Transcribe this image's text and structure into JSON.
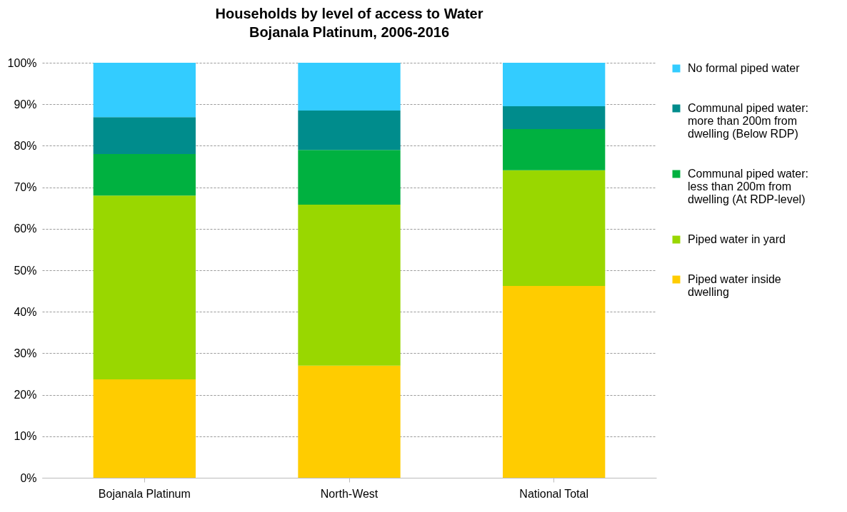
{
  "chart_data": {
    "type": "bar",
    "stacked": true,
    "title": "Households by level of access to Water",
    "subtitle": "Bojanala Platinum, 2006-2016",
    "categories": [
      "Bojanala Platinum",
      "North-West",
      "National Total"
    ],
    "series": [
      {
        "name": "Piped water inside dwelling",
        "color": "#ffcc00",
        "values": [
          23.7,
          27.0,
          46.2
        ]
      },
      {
        "name": "Piped water in yard",
        "color": "#99d700",
        "values": [
          44.3,
          38.8,
          27.9
        ]
      },
      {
        "name": "Communal piped water: less than 200m from dwelling (At RDP-level)",
        "color": "#00b140",
        "values": [
          10.0,
          13.2,
          9.9
        ]
      },
      {
        "name": "Communal piped water: more than 200m from dwelling (Below RDP)",
        "color": "#008c8c",
        "values": [
          8.9,
          9.5,
          5.5
        ]
      },
      {
        "name": "No formal piped water",
        "color": "#33ccff",
        "values": [
          13.1,
          11.5,
          10.5
        ]
      }
    ],
    "ylim": [
      0,
      100
    ],
    "yticks": [
      {
        "value": 0,
        "label": "0%"
      },
      {
        "value": 10,
        "label": "10%"
      },
      {
        "value": 20,
        "label": "20%"
      },
      {
        "value": 30,
        "label": "30%"
      },
      {
        "value": 40,
        "label": "40%"
      },
      {
        "value": 50,
        "label": "50%"
      },
      {
        "value": 60,
        "label": "60%"
      },
      {
        "value": 70,
        "label": "70%"
      },
      {
        "value": 80,
        "label": "80%"
      },
      {
        "value": 90,
        "label": "90%"
      },
      {
        "value": 100,
        "label": "100%"
      }
    ],
    "grid": "y",
    "legend": "right"
  }
}
